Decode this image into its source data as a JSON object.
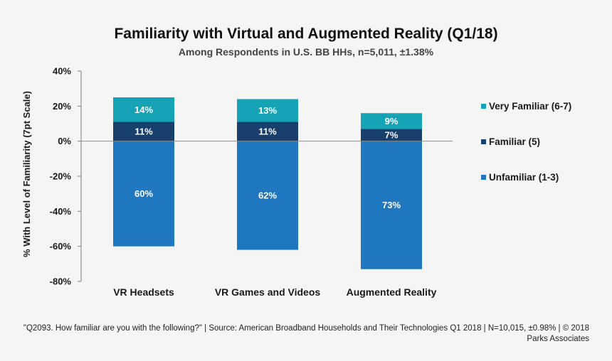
{
  "chart_data": {
    "type": "bar",
    "stacked": true,
    "title": "Familiarity with Virtual and Augmented Reality (Q1/18)",
    "subtitle": "Among Respondents in U.S. BB HHs, n=5,011, ±1.38%",
    "ylabel": "% With Level of Familiarity (7pt Scale)",
    "xlabel": "",
    "ylim": [
      -80,
      40
    ],
    "yticks": [
      40,
      20,
      0,
      -20,
      -40,
      -60,
      -80
    ],
    "ytick_labels": [
      "40%",
      "20%",
      "0%",
      "-20%",
      "-40%",
      "-60%",
      "-80%"
    ],
    "categories": [
      "VR Headsets",
      "VR Games and Videos",
      "Augmented Reality"
    ],
    "series": [
      {
        "name": "Unfamiliar (1-3)",
        "values": [
          -60,
          -62,
          -73
        ],
        "labels": [
          "60%",
          "62%",
          "73%"
        ],
        "color": "#1f77c0"
      },
      {
        "name": "Familiar (5)",
        "values": [
          11,
          11,
          7
        ],
        "labels": [
          "11%",
          "11%",
          "7%"
        ],
        "color": "#17406d"
      },
      {
        "name": "Very Familiar (6-7)",
        "values": [
          14,
          13,
          9
        ],
        "labels": [
          "14%",
          "13%",
          "9%"
        ],
        "color": "#16a3b5"
      }
    ],
    "legend": [
      "Very Familiar (6-7)",
      "Familiar (5)",
      "Unfamiliar (1-3)"
    ],
    "legend_position": "right",
    "grid": false
  },
  "footer": "\"Q2093. How familiar are you with the following?\" | Source: American Broadband Households and Their Technologies Q1 2018 | N=10,015, ±0.98% | © 2018 Parks Associates",
  "colors": {
    "background": "#f5f5f5",
    "axis": "#7f7f7f"
  }
}
